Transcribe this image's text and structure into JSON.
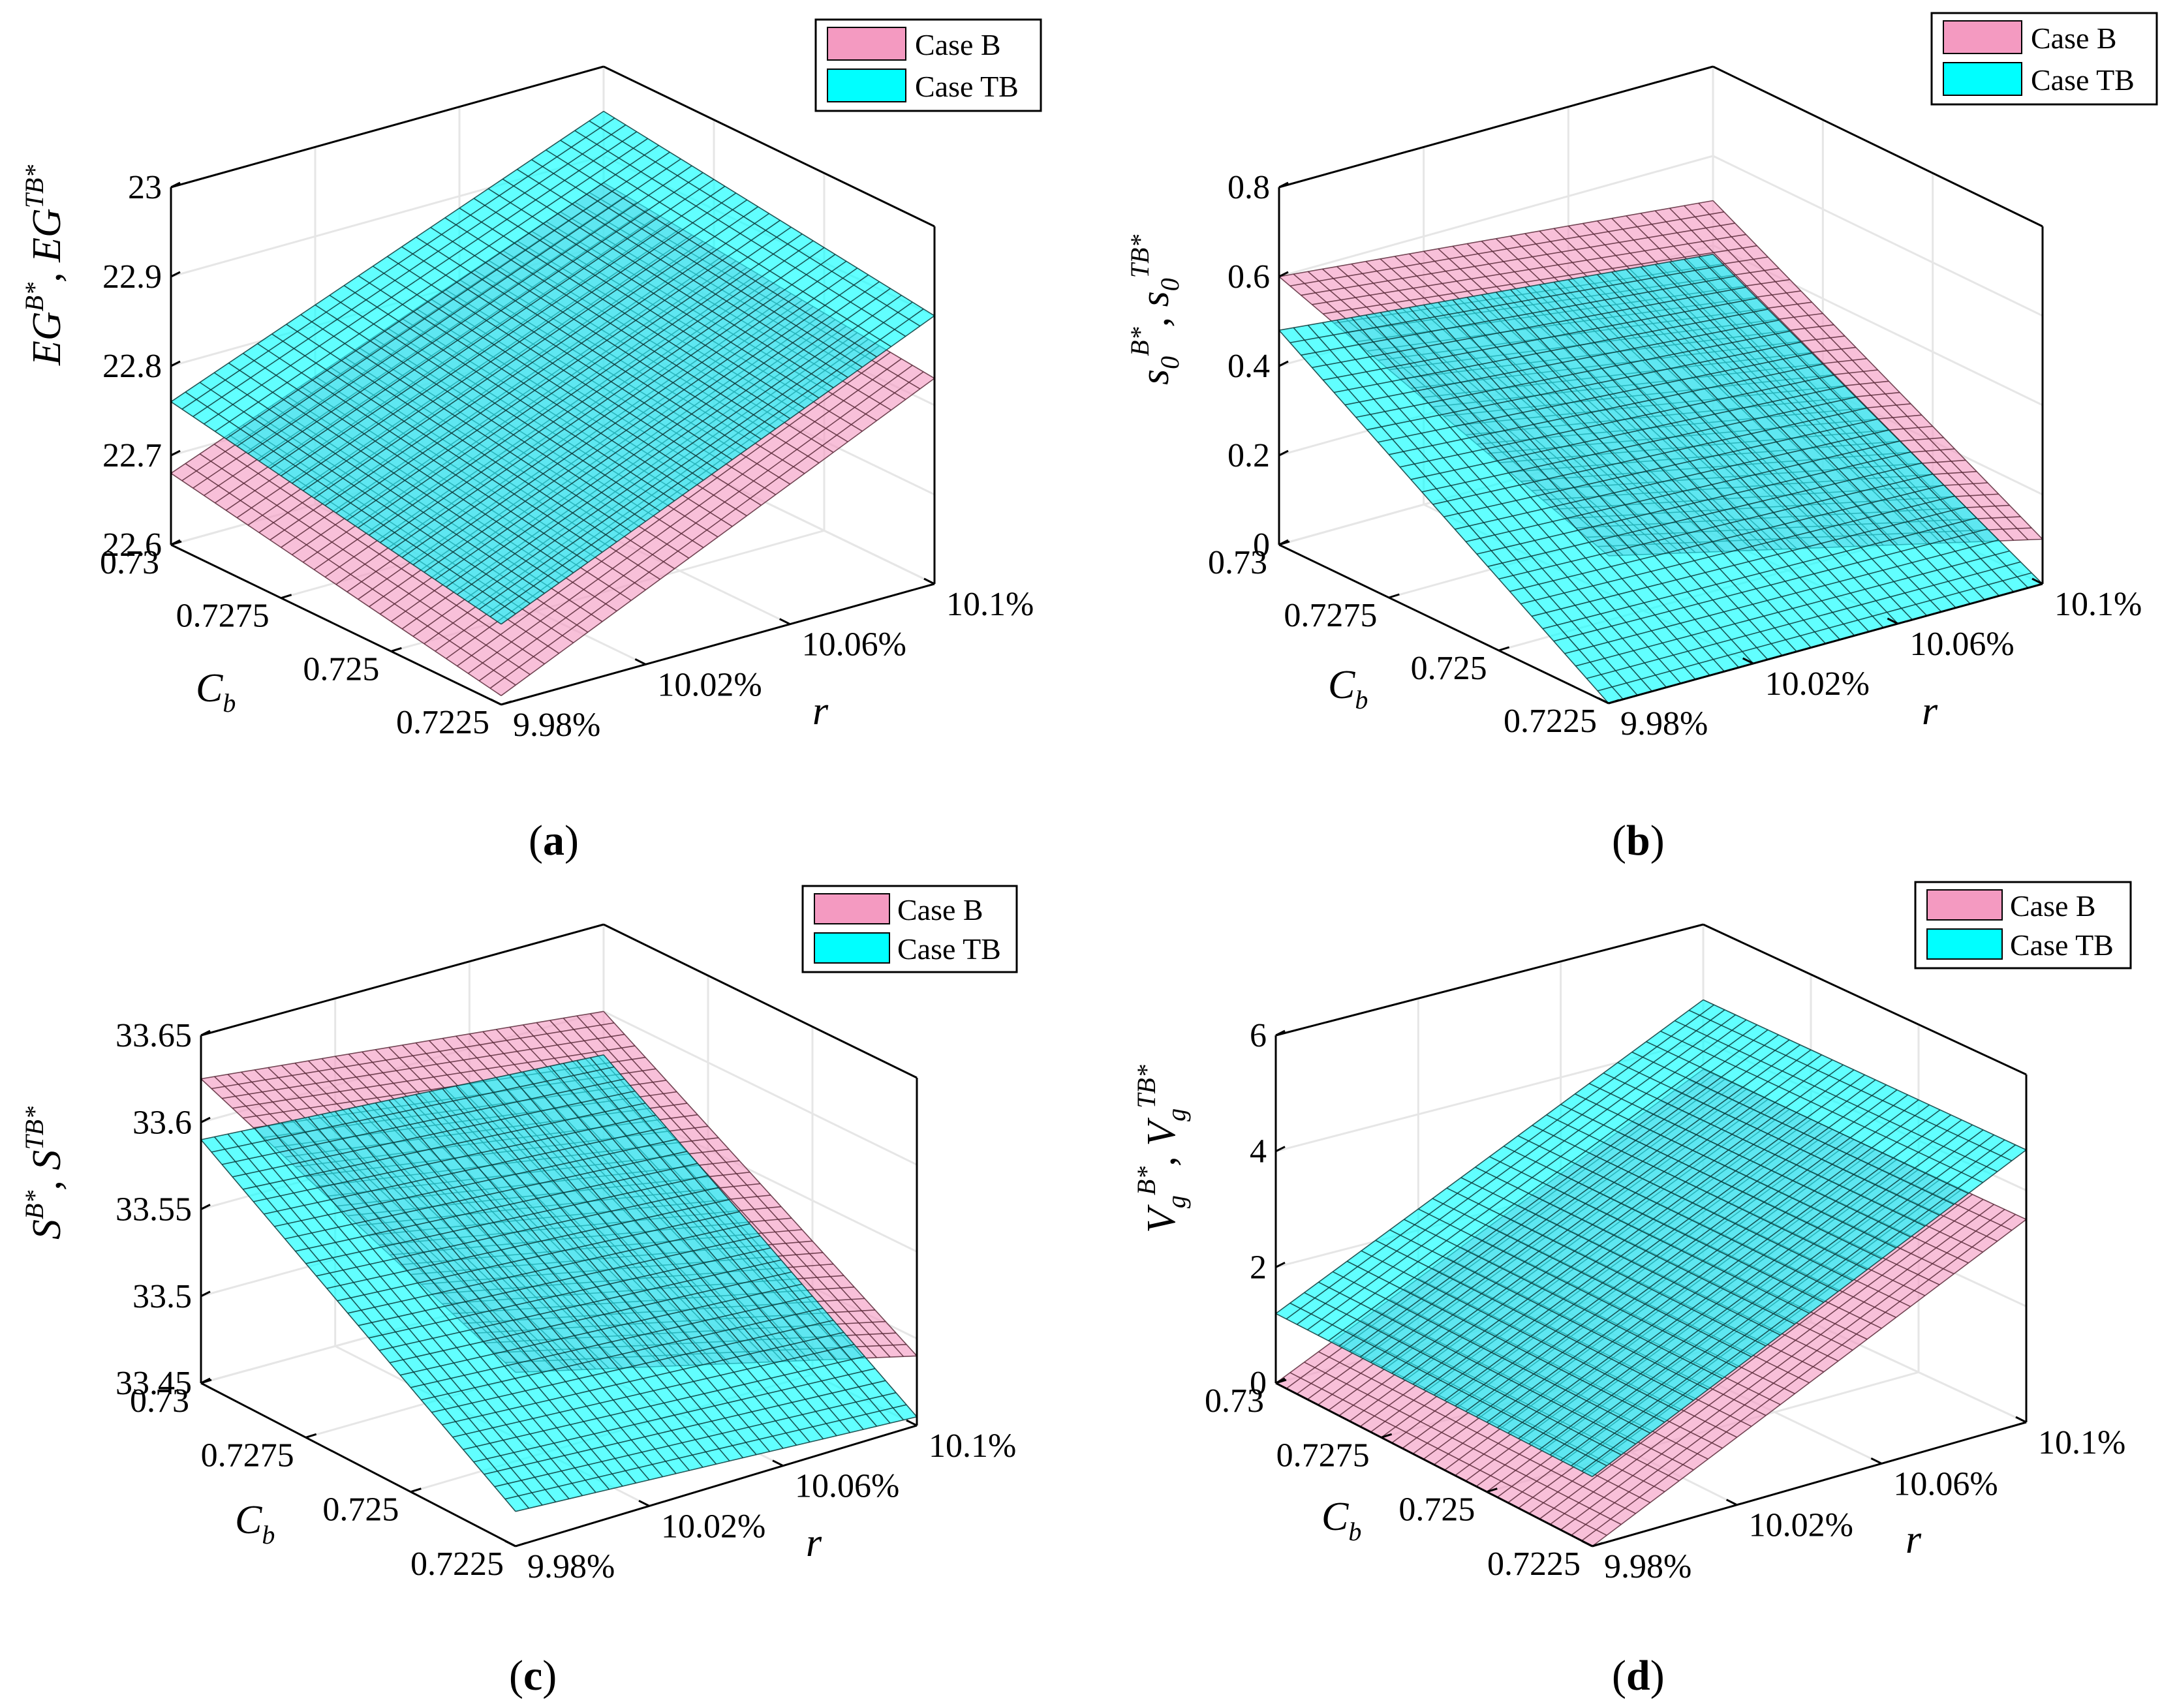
{
  "colors": {
    "case_b": "#f49ac1",
    "case_tb": "#00ffff",
    "overlap": "#6fa8c7",
    "mesh_b": "#5a2a3a",
    "mesh_tb": "#0a3a3a",
    "grid": "#e6e6e6"
  },
  "chart_data": [
    {
      "type": "surface3d",
      "panel_label": "a",
      "zlabel": "EG^{B*}, EG^{TB*}",
      "xlabel": "r",
      "ylabel": "C_b",
      "x_ticks": [
        "9.98%",
        "10.02%",
        "10.06%",
        "10.1%"
      ],
      "xlim": [
        9.98,
        10.1
      ],
      "y_ticks": [
        "0.7225",
        "0.725",
        "0.7275",
        "0.73"
      ],
      "ylim": [
        0.7225,
        0.73
      ],
      "z_ticks": [
        "22.6",
        "22.7",
        "22.8",
        "22.9",
        "23"
      ],
      "zlim": [
        22.6,
        23.0
      ],
      "legend": [
        "Case B",
        "Case TB"
      ],
      "series": [
        {
          "name": "Case B",
          "corners": {
            "r_min_cb_max": 22.68,
            "r_min_cb_min": 22.61,
            "r_max_cb_min": 22.83,
            "r_max_cb_max": 22.87
          }
        },
        {
          "name": "Case TB",
          "corners": {
            "r_min_cb_max": 22.76,
            "r_min_cb_min": 22.69,
            "r_max_cb_min": 22.9,
            "r_max_cb_max": 22.95
          }
        }
      ]
    },
    {
      "type": "surface3d",
      "panel_label": "b",
      "zlabel": "s_0^{B*}, s_0^{TB*}",
      "xlabel": "r",
      "ylabel": "C_b",
      "x_ticks": [
        "9.98%",
        "10.02%",
        "10.06%",
        "10.1%"
      ],
      "xlim": [
        9.98,
        10.1
      ],
      "y_ticks": [
        "0.7225",
        "0.725",
        "0.7275",
        "0.73"
      ],
      "ylim": [
        0.7225,
        0.73
      ],
      "z_ticks": [
        "0",
        "0.2",
        "0.4",
        "0.6",
        "0.8"
      ],
      "zlim": [
        0,
        0.8
      ],
      "legend": [
        "Case B",
        "Case TB"
      ],
      "series": [
        {
          "name": "Case B",
          "corners": {
            "r_min_cb_max": 0.6,
            "r_min_cb_min": 0.33,
            "r_max_cb_min": 0.1,
            "r_max_cb_max": 0.5
          }
        },
        {
          "name": "Case TB",
          "corners": {
            "r_min_cb_max": 0.48,
            "r_min_cb_min": 0.0,
            "r_max_cb_min": 0.0,
            "r_max_cb_max": 0.38
          }
        }
      ]
    },
    {
      "type": "surface3d",
      "panel_label": "c",
      "zlabel": "S^{B*}, S^{TB*}",
      "xlabel": "r",
      "ylabel": "C_b",
      "x_ticks": [
        "9.98%",
        "10.02%",
        "10.06%",
        "10.1%"
      ],
      "xlim": [
        9.98,
        10.1
      ],
      "y_ticks": [
        "0.7225",
        "0.725",
        "0.7275",
        "0.73"
      ],
      "ylim": [
        0.7225,
        0.73
      ],
      "z_ticks": [
        "33.45",
        "33.5",
        "33.55",
        "33.6",
        "33.65"
      ],
      "zlim": [
        33.45,
        33.65
      ],
      "legend": [
        "Case B",
        "Case TB"
      ],
      "series": [
        {
          "name": "Case B",
          "corners": {
            "r_min_cb_max": 33.625,
            "r_min_cb_min": 33.55,
            "r_max_cb_min": 33.49,
            "r_max_cb_max": 33.6
          }
        },
        {
          "name": "Case TB",
          "corners": {
            "r_min_cb_max": 33.59,
            "r_min_cb_min": 33.47,
            "r_max_cb_min": 33.455,
            "r_max_cb_max": 33.575
          }
        }
      ]
    },
    {
      "type": "surface3d",
      "panel_label": "d",
      "zlabel": "V_g^{B*}, V_g^{TB*}",
      "xlabel": "r",
      "ylabel": "C_b",
      "x_ticks": [
        "9.98%",
        "10.02%",
        "10.06%",
        "10.1%"
      ],
      "xlim": [
        9.98,
        10.1
      ],
      "y_ticks": [
        "0.7225",
        "0.725",
        "0.7275",
        "0.73"
      ],
      "ylim": [
        0.7225,
        0.73
      ],
      "z_ticks": [
        "0",
        "2",
        "4",
        "6"
      ],
      "zlim": [
        0,
        6
      ],
      "legend": [
        "Case B",
        "Case TB"
      ],
      "series": [
        {
          "name": "Case B",
          "corners": {
            "r_min_cb_max": 0.0,
            "r_min_cb_min": 0.0,
            "r_max_cb_min": 3.5,
            "r_max_cb_max": 3.5
          }
        },
        {
          "name": "Case TB",
          "corners": {
            "r_min_cb_max": 1.2,
            "r_min_cb_min": 1.2,
            "r_max_cb_min": 4.7,
            "r_max_cb_max": 4.7
          }
        }
      ]
    }
  ]
}
